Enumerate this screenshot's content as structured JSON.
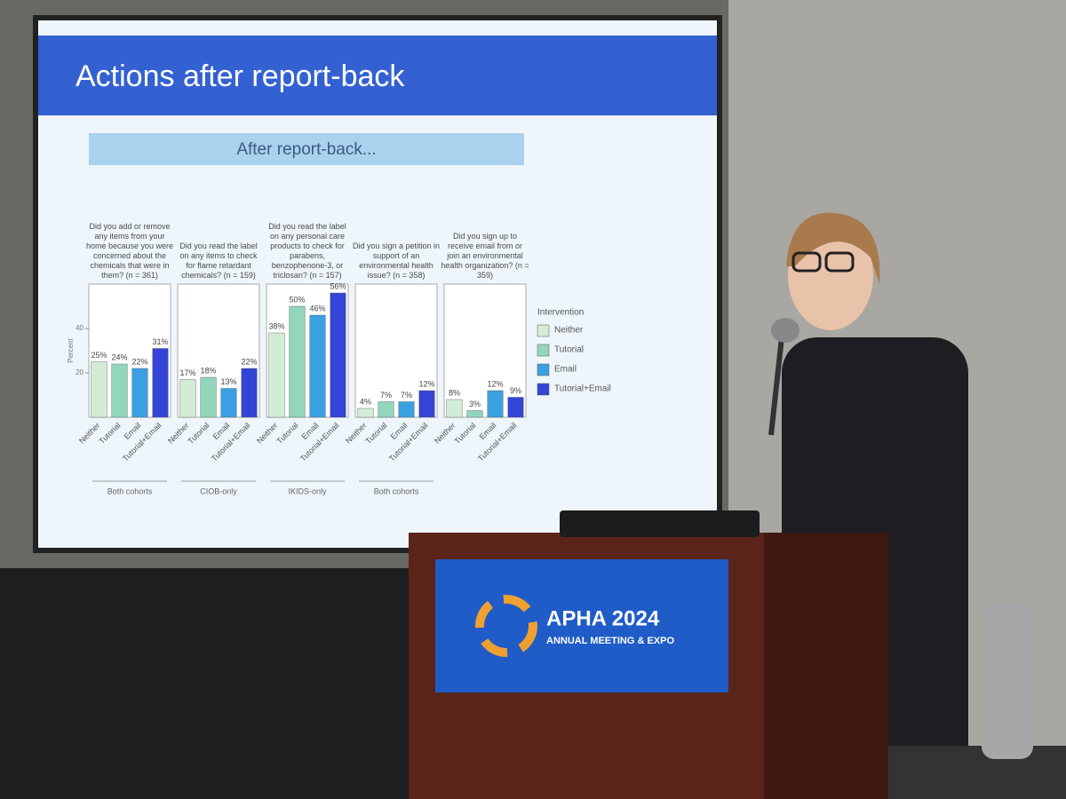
{
  "slide": {
    "title": "Actions after report-back",
    "subtitle": "After report-back..."
  },
  "chart_data": [
    {
      "type": "bar",
      "title": "Did you add or remove any items from your home because you were concerned about the chemicals that were in them? (n = 361)",
      "categories": [
        "Neither",
        "Tutorial",
        "Email",
        "Tutorial+Email"
      ],
      "values": [
        25,
        24,
        22,
        31
      ],
      "value_labels": [
        "25%",
        "24%",
        "22%",
        "31%"
      ],
      "cohort": "Both cohorts",
      "ylim": [
        0,
        60
      ],
      "yticks": [
        20,
        40
      ],
      "ylabel": "Percent"
    },
    {
      "type": "bar",
      "title": "Did you read the label on any items to check for flame retardant chemicals? (n = 159)",
      "categories": [
        "Neither",
        "Tutorial",
        "Email",
        "Tutorial+Email"
      ],
      "values": [
        17,
        18,
        13,
        22
      ],
      "value_labels": [
        "17%",
        "18%",
        "13%",
        "22%"
      ],
      "cohort": "CIOB-only",
      "ylim": [
        0,
        60
      ]
    },
    {
      "type": "bar",
      "title": "Did you read the label on any personal care products to check for parabens, benzophenone-3, or triclosan? (n = 157)",
      "categories": [
        "Neither",
        "Tutorial",
        "Email",
        "Tutorial+Email"
      ],
      "values": [
        38,
        50,
        46,
        56
      ],
      "value_labels": [
        "38%",
        "50%",
        "46%",
        "56%"
      ],
      "cohort": "IKIDS-only",
      "ylim": [
        0,
        60
      ]
    },
    {
      "type": "bar",
      "title": "Did you sign a petition in support of an environmental health issue? (n = 358)",
      "categories": [
        "Neither",
        "Tutorial",
        "Email",
        "Tutorial+Email"
      ],
      "values": [
        4,
        7,
        7,
        12
      ],
      "value_labels": [
        "4%",
        "7%",
        "7%",
        "12%"
      ],
      "cohort": "Both cohorts",
      "ylim": [
        0,
        60
      ]
    },
    {
      "type": "bar",
      "title": "Did you sign up to receive email from or join an environmental health organization? (n = 359)",
      "categories": [
        "Neither",
        "Tutorial",
        "Email",
        "Tutorial+Email"
      ],
      "values": [
        8,
        3,
        12,
        9
      ],
      "value_labels": [
        "8%",
        "3%",
        "12%",
        "9%"
      ],
      "ylim": [
        0,
        60
      ]
    }
  ],
  "legend": {
    "title": "Intervention",
    "entries": [
      {
        "name": "Neither",
        "color": "#d3ecd6"
      },
      {
        "name": "Tutorial",
        "color": "#92d6bb"
      },
      {
        "name": "Email",
        "color": "#3aa0e2"
      },
      {
        "name": "Tutorial+Email",
        "color": "#3444d6"
      }
    ]
  },
  "banner": {
    "title": "APHA 2024",
    "subtitle": "ANNUAL MEETING & EXPO"
  }
}
